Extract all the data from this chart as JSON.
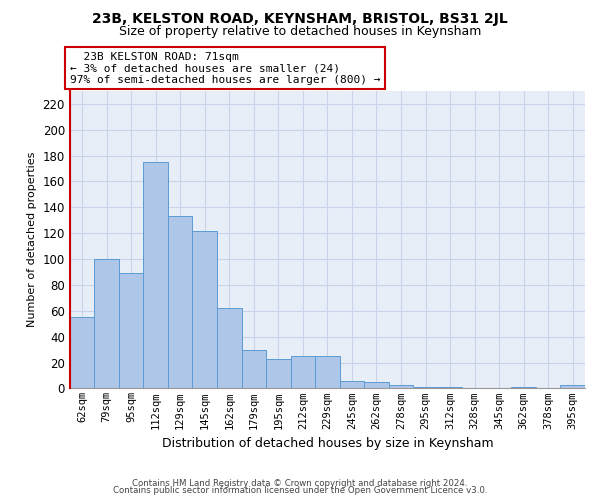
{
  "title1": "23B, KELSTON ROAD, KEYNSHAM, BRISTOL, BS31 2JL",
  "title2": "Size of property relative to detached houses in Keynsham",
  "xlabel": "Distribution of detached houses by size in Keynsham",
  "ylabel": "Number of detached properties",
  "footnote1": "Contains HM Land Registry data © Crown copyright and database right 2024.",
  "footnote2": "Contains public sector information licensed under the Open Government Licence v3.0.",
  "annotation_title": "23B KELSTON ROAD: 71sqm",
  "annotation_line1": "← 3% of detached houses are smaller (24)",
  "annotation_line2": "97% of semi-detached houses are larger (800) →",
  "bar_labels": [
    "62sqm",
    "79sqm",
    "95sqm",
    "112sqm",
    "129sqm",
    "145sqm",
    "162sqm",
    "179sqm",
    "195sqm",
    "212sqm",
    "229sqm",
    "245sqm",
    "262sqm",
    "278sqm",
    "295sqm",
    "312sqm",
    "328sqm",
    "345sqm",
    "362sqm",
    "378sqm",
    "395sqm"
  ],
  "bar_values": [
    55,
    100,
    89,
    175,
    133,
    122,
    62,
    30,
    23,
    25,
    25,
    6,
    5,
    3,
    1,
    1,
    0,
    0,
    1,
    0,
    3
  ],
  "bar_color": "#aec6e8",
  "bar_edge_color": "#5b9bd5",
  "ylim": [
    0,
    230
  ],
  "yticks": [
    0,
    20,
    40,
    60,
    80,
    100,
    120,
    140,
    160,
    180,
    200,
    220
  ],
  "grid_color": "#c8d4e8",
  "background_color": "#e8eef8",
  "annotation_box_color": "#ffffff",
  "annotation_box_edge": "#cc0000",
  "marker_line_color": "#cc0000",
  "title1_fontsize": 10,
  "title2_fontsize": 9,
  "ylabel_fontsize": 8,
  "xlabel_fontsize": 9
}
